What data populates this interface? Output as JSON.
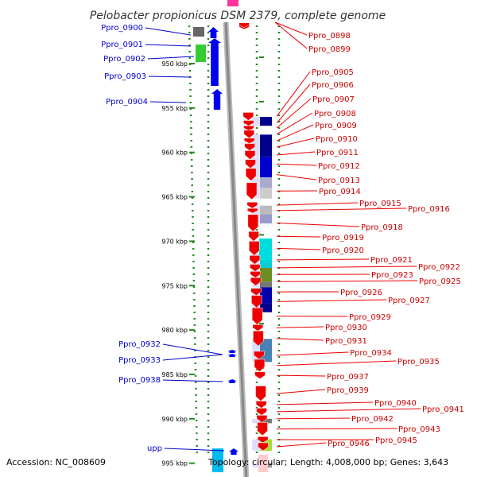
{
  "title": "Pelobacter propionicus DSM 2379, complete genome",
  "accession": "Accession: NC_008609",
  "topology": "Topology: circular; Length: 4,008,000 bp; Genes: 3,643",
  "colors": {
    "forward_gene": "#0000ee",
    "reverse_gene": "#ee0000",
    "forward_label": "#00008b",
    "reverse_label": "#cc0000",
    "backbone": "#888888",
    "tick": "#228b22"
  },
  "scale": {
    "ticks": [
      {
        "label": "950 kbp",
        "kbp": 950
      },
      {
        "label": "955 kbp",
        "kbp": 955
      },
      {
        "label": "960 kbp",
        "kbp": 960
      },
      {
        "label": "965 kbp",
        "kbp": 965
      },
      {
        "label": "970 kbp",
        "kbp": 970
      },
      {
        "label": "975 kbp",
        "kbp": 975
      },
      {
        "label": "980 kbp",
        "kbp": 980
      },
      {
        "label": "985 kbp",
        "kbp": 985
      },
      {
        "label": "990 kbp",
        "kbp": 990
      },
      {
        "label": "995 kbp",
        "kbp": 995
      }
    ]
  },
  "genes_forward": [
    {
      "name": "Ppro_0900",
      "start_kbp": 946.5,
      "end_kbp": 947.6,
      "cog_color": "#666666"
    },
    {
      "name": "Ppro_0901",
      "start_kbp": 946.4,
      "end_kbp": 947.6,
      "cog_color": "#0000ee"
    },
    {
      "name": "Ppro_0902",
      "start_kbp": 947.7,
      "end_kbp": 949.8,
      "cog_color": "#33cc33"
    },
    {
      "name": "Ppro_0903",
      "start_kbp": 949.3,
      "end_kbp": 952.4,
      "cog_color": "#0000ee"
    },
    {
      "name": "Ppro_0904",
      "start_kbp": 952.7,
      "end_kbp": 954.9,
      "cog_color": "#0000ee"
    },
    {
      "name": "Ppro_0932",
      "start_kbp": 982.6,
      "end_kbp": 982.9,
      "cog_color": "#0000ee"
    },
    {
      "name": "Ppro_0933",
      "start_kbp": 983.0,
      "end_kbp": 983.3,
      "cog_color": "#0000ee"
    },
    {
      "name": "Ppro_0938",
      "start_kbp": 985.6,
      "end_kbp": 985.9,
      "cog_color": "#0000ee"
    },
    {
      "name": "upp",
      "start_kbp": 994.3,
      "end_kbp": 994.9,
      "cog_color": "#0000ee"
    }
  ],
  "genes_reverse": [
    {
      "name": "Ppro_0898",
      "start_kbp": 945.6,
      "end_kbp": 945.8
    },
    {
      "name": "Ppro_0899",
      "start_kbp": 945.4,
      "end_kbp": 945.6
    },
    {
      "name": "Ppro_0905",
      "start_kbp": 955.5,
      "end_kbp": 956.4
    },
    {
      "name": "Ppro_0906",
      "start_kbp": 956.4,
      "end_kbp": 957.0
    },
    {
      "name": "Ppro_0907",
      "start_kbp": 957.0,
      "end_kbp": 957.5
    },
    {
      "name": "Ppro_0908",
      "start_kbp": 957.5,
      "end_kbp": 958.4
    },
    {
      "name": "Ppro_0909",
      "start_kbp": 958.4,
      "end_kbp": 959.0
    },
    {
      "name": "Ppro_0910",
      "start_kbp": 959.0,
      "end_kbp": 959.8
    },
    {
      "name": "Ppro_0911",
      "start_kbp": 959.8,
      "end_kbp": 960.8
    },
    {
      "name": "Ppro_0912",
      "start_kbp": 960.8,
      "end_kbp": 961.8
    },
    {
      "name": "Ppro_0913",
      "start_kbp": 961.8,
      "end_kbp": 963.2
    },
    {
      "name": "Ppro_0914",
      "start_kbp": 963.4,
      "end_kbp": 965.3
    },
    {
      "name": "Ppro_0915",
      "start_kbp": 965.6,
      "end_kbp": 966.3
    },
    {
      "name": "Ppro_0916",
      "start_kbp": 966.3,
      "end_kbp": 966.8
    },
    {
      "name": "Ppro_0918",
      "start_kbp": 967.0,
      "end_kbp": 968.9
    },
    {
      "name": "Ppro_0919",
      "start_kbp": 968.9,
      "end_kbp": 970.0
    },
    {
      "name": "Ppro_0920",
      "start_kbp": 970.0,
      "end_kbp": 971.6
    },
    {
      "name": "Ppro_0921",
      "start_kbp": 971.6,
      "end_kbp": 972.6
    },
    {
      "name": "Ppro_0922",
      "start_kbp": 972.6,
      "end_kbp": 973.4
    },
    {
      "name": "Ppro_0923",
      "start_kbp": 973.4,
      "end_kbp": 974.1
    },
    {
      "name": "Ppro_0925",
      "start_kbp": 974.1,
      "end_kbp": 975.0
    },
    {
      "name": "Ppro_0926",
      "start_kbp": 975.3,
      "end_kbp": 976.1
    },
    {
      "name": "Ppro_0927",
      "start_kbp": 976.1,
      "end_kbp": 977.5
    },
    {
      "name": "Ppro_0929",
      "start_kbp": 977.5,
      "end_kbp": 979.4
    },
    {
      "name": "Ppro_0930",
      "start_kbp": 979.4,
      "end_kbp": 980.1
    },
    {
      "name": "Ppro_0931",
      "start_kbp": 980.1,
      "end_kbp": 981.8
    },
    {
      "name": "Ppro_0934",
      "start_kbp": 982.4,
      "end_kbp": 983.3
    },
    {
      "name": "Ppro_0935",
      "start_kbp": 983.3,
      "end_kbp": 984.7
    },
    {
      "name": "Ppro_0937",
      "start_kbp": 984.7,
      "end_kbp": 985.5
    },
    {
      "name": "Ppro_0939",
      "start_kbp": 986.3,
      "end_kbp": 988.0
    },
    {
      "name": "Ppro_0940",
      "start_kbp": 988.0,
      "end_kbp": 988.8
    },
    {
      "name": "Ppro_0941",
      "start_kbp": 988.8,
      "end_kbp": 989.6
    },
    {
      "name": "Ppro_0942",
      "start_kbp": 989.6,
      "end_kbp": 990.4
    },
    {
      "name": "Ppro_0943",
      "start_kbp": 990.4,
      "end_kbp": 991.9
    },
    {
      "name": "Ppro_0945",
      "start_kbp": 992.0,
      "end_kbp": 992.7
    },
    {
      "name": "Ppro_0946",
      "start_kbp": 992.7,
      "end_kbp": 993.6
    }
  ]
}
